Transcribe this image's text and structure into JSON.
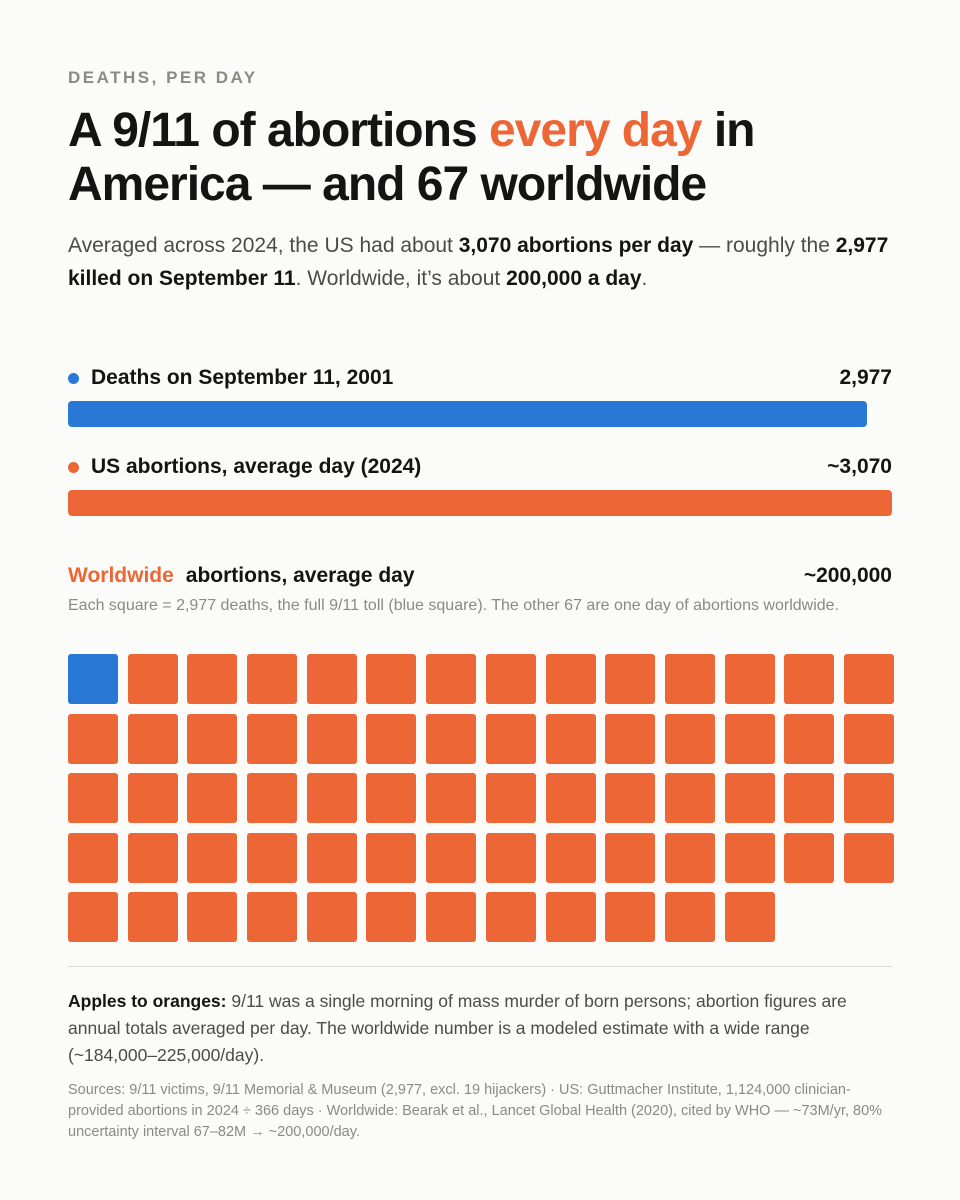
{
  "kicker": "DEATHS, PER DAY",
  "headline": {
    "part1": "A 9/11 of abortions ",
    "accent": "every day",
    "part2": " in America — and 67 worldwide"
  },
  "subhead": {
    "t1": "Averaged across 2024, the US had about ",
    "b1": "3,070 abortions per day",
    "t2": " — roughly the ",
    "b2": "2,977 killed on September 11",
    "t3": ". Worldwide, it’s about ",
    "b3": "200,000 a day",
    "t4": "."
  },
  "colors": {
    "blue": "#2a78d6",
    "orange": "#ec6636"
  },
  "chart_data": [
    {
      "type": "bar",
      "orientation": "horizontal",
      "max": 3070,
      "bars": [
        {
          "label": "Deaths on September 11, 2001",
          "value": 2977,
          "value_label": "2,977",
          "color": "#2a78d6"
        },
        {
          "label": "US abortions, average day (2024)",
          "value": 3070,
          "value_label": "~3,070",
          "color": "#ec6636"
        }
      ]
    },
    {
      "type": "waffle",
      "title_accent": "Worldwide",
      "title_rest": "abortions, average day",
      "value_label": "~200,000",
      "note": "Each square = 2,977 deaths, the full 9/11 toll (blue square). The other 67 are one day of abortions worldwide.",
      "columns": 14,
      "blue_squares": 1,
      "orange_squares": 67
    }
  ],
  "caveat": {
    "lead": "Apples to oranges:",
    "text": " 9/11 was a single morning of mass murder of born persons; abortion figures are annual totals averaged per day. The worldwide number is a modeled estimate with a wide range (~184,000–225,000/day)."
  },
  "sources": "Sources: 9/11 victims, 9/11 Memorial & Museum (2,977, excl. 19 hijackers) · US: Guttmacher Institute, 1,124,000 clinician-provided abortions in 2024 ÷ 366 days · Worldwide: Bearak et al., Lancet Global Health (2020), cited by WHO — ~73M/yr, 80% uncertainty interval 67–82M → ~200,000/day."
}
